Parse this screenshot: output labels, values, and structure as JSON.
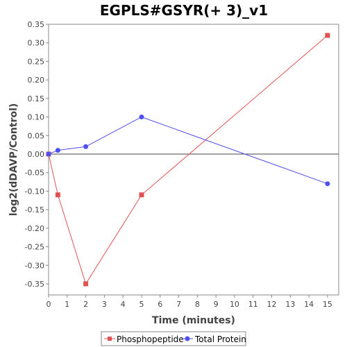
{
  "chart_data": {
    "type": "line",
    "title": "EGPLS#GSYR(+ 3)_v1",
    "xlabel": "Time (minutes)",
    "ylabel": "log2(dDAVP/Control)",
    "xlim": [
      0,
      15.6
    ],
    "ylim": [
      -0.38,
      0.35
    ],
    "x_ticks": [
      "0",
      "1",
      "2",
      "3",
      "4",
      "5",
      "6",
      "7",
      "8",
      "9",
      "10",
      "11",
      "12",
      "13",
      "14",
      "15"
    ],
    "y_ticks": [
      "0.35",
      "0.30",
      "0.25",
      "0.20",
      "0.15",
      "0.10",
      "0.05",
      "0.00",
      "-0.05",
      "-0.10",
      "-0.15",
      "-0.20",
      "-0.25",
      "-0.30",
      "-0.35"
    ],
    "y_tick_values": [
      0.35,
      0.3,
      0.25,
      0.2,
      0.15,
      0.1,
      0.05,
      0.0,
      -0.05,
      -0.1,
      -0.15,
      -0.2,
      -0.25,
      -0.3,
      -0.35
    ],
    "grid": false,
    "legend_position": "bottom",
    "series": [
      {
        "name": "Phosphopeptide",
        "color": "#e05252",
        "marker": "square",
        "x": [
          0,
          0.5,
          2,
          5,
          15
        ],
        "y": [
          0.0,
          -0.11,
          -0.35,
          -0.11,
          0.32
        ]
      },
      {
        "name": "Total Protein",
        "color": "#5050f0",
        "marker": "circle",
        "x": [
          0,
          0.5,
          2,
          5,
          15
        ],
        "y": [
          0.0,
          0.01,
          0.02,
          0.1,
          -0.08
        ]
      }
    ]
  }
}
